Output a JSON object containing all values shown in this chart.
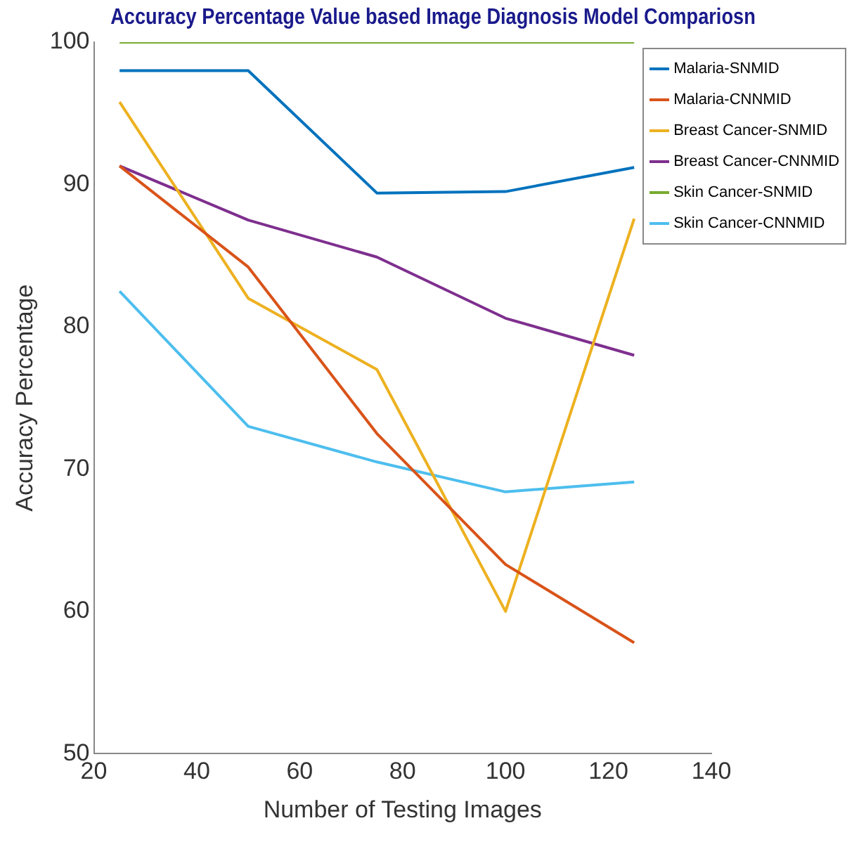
{
  "chart_data": {
    "type": "line",
    "title": "Accuracy Percentage Value based Image Diagnosis Model Compariosn",
    "xlabel": "Number of Testing Images",
    "ylabel": "Accuracy Percentage",
    "x": [
      25,
      50,
      75,
      100,
      125
    ],
    "series": [
      {
        "name": "Malaria-SNMID",
        "color": "#0072bd",
        "values": [
          98,
          98,
          89.4,
          89.5,
          91.2
        ]
      },
      {
        "name": "Malaria-CNNMID",
        "color": "#d95319",
        "values": [
          91.3,
          84.2,
          72.5,
          63.3,
          57.8
        ]
      },
      {
        "name": "Breast Cancer-SNMID",
        "color": "#edb120",
        "values": [
          95.8,
          82,
          77,
          60,
          87.6
        ]
      },
      {
        "name": "Breast Cancer-CNNMID",
        "color": "#7e2f8e",
        "values": [
          91.3,
          87.5,
          84.9,
          80.6,
          78
        ]
      },
      {
        "name": "Skin Cancer-SNMID",
        "color": "#77ac30",
        "values": [
          100,
          100,
          100,
          100,
          100
        ]
      },
      {
        "name": "Skin Cancer-CNNMID",
        "color": "#4dbeee",
        "values": [
          82.5,
          73,
          70.5,
          68.4,
          69.1
        ]
      }
    ],
    "xlim": [
      20,
      140
    ],
    "xticks": [
      20,
      40,
      60,
      80,
      100,
      120,
      140
    ],
    "ylim": [
      50,
      100
    ],
    "yticks": [
      50,
      60,
      70,
      80,
      90,
      100
    ],
    "grid": false,
    "legend": "top right",
    "marker": "none",
    "line_style": "solid"
  }
}
